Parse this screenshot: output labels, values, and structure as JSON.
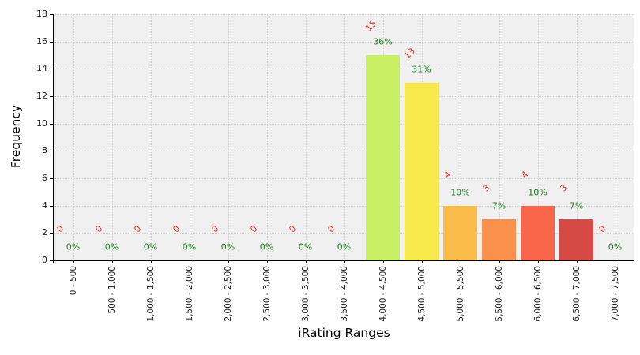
{
  "figure": {
    "background": "#ffffff",
    "plot_background": "#f0f0f0",
    "grid_color": "#d2d2d2",
    "spine_color": "#000000",
    "tick_label_color": "#1a1a1a",
    "count_label_color": "#e8332a",
    "percent_label_color": "#1e7d1e"
  },
  "chart_data": {
    "type": "bar",
    "title": "",
    "xlabel": "iRating Ranges",
    "ylabel": "Frequency",
    "categories": [
      "0 - 500",
      "500 - 1,000",
      "1,000 - 1,500",
      "1,500 - 2,000",
      "2,000 - 2,500",
      "2,500 - 3,000",
      "3,000 - 3,500",
      "3,500 - 4,000",
      "4,000 - 4,500",
      "4,500 - 5,000",
      "5,000 - 5,500",
      "5,500 - 6,000",
      "6,000 - 6,500",
      "6,500 - 7,000",
      "7,000 - 7,500"
    ],
    "values": [
      0,
      0,
      0,
      0,
      0,
      0,
      0,
      0,
      15,
      13,
      4,
      3,
      4,
      3,
      0
    ],
    "count_labels": [
      "0",
      "0",
      "0",
      "0",
      "0",
      "0",
      "0",
      "0",
      "15",
      "13",
      "4",
      "3",
      "4",
      "3",
      "0"
    ],
    "percent_labels": [
      "0%",
      "0%",
      "0%",
      "0%",
      "0%",
      "0%",
      "0%",
      "0%",
      "36%",
      "31%",
      "10%",
      "7%",
      "10%",
      "7%",
      "0%"
    ],
    "bar_colors": [
      null,
      null,
      null,
      null,
      null,
      null,
      null,
      null,
      "#c9ef63",
      "#f7e84b",
      "#fabd4a",
      "#f9914c",
      "#f9664a",
      "#d64a45",
      null
    ],
    "ylim": [
      0,
      18
    ],
    "yticks": [
      0,
      2,
      4,
      6,
      8,
      10,
      12,
      14,
      16,
      18
    ],
    "ytick_labels": [
      "0",
      "2",
      "4",
      "6",
      "8",
      "10",
      "12",
      "14",
      "16",
      "18"
    ],
    "grid": "dotted horizontal and vertical",
    "legend": "none"
  }
}
